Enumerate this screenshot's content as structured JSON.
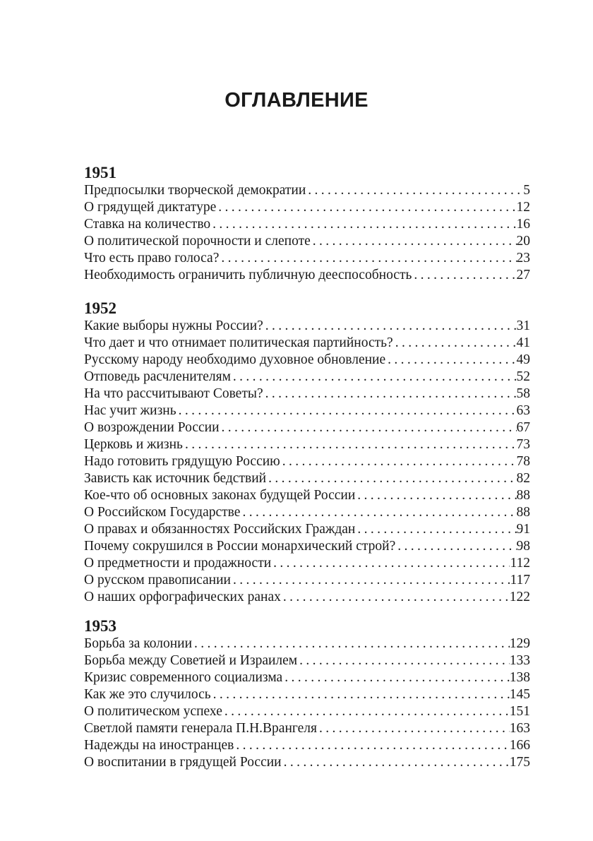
{
  "title": "ОГЛАВЛЕНИЕ",
  "sections": [
    {
      "year": "1951",
      "entries": [
        {
          "title": "Предпосылки творческой демократии",
          "page": "5"
        },
        {
          "title": "О грядущей диктатуре",
          "page": "12"
        },
        {
          "title": "Ставка на количество",
          "page": "16"
        },
        {
          "title": "О политической порочности и слепоте",
          "page": "20"
        },
        {
          "title": "Что есть право голоса?",
          "page": "23"
        },
        {
          "title": "Необходимость ограничить публичную дееспособность",
          "page": "27"
        }
      ]
    },
    {
      "year": "1952",
      "entries": [
        {
          "title": "Какие выборы нужны России?",
          "page": "31"
        },
        {
          "title": "Что дает и что отнимает политическая партийность?",
          "page": "41"
        },
        {
          "title": "Русскому народу необходимо духовное обновление",
          "page": "49"
        },
        {
          "title": "Отповедь расчленителям",
          "page": "52"
        },
        {
          "title": "На что рассчитывают Советы?",
          "page": "58"
        },
        {
          "title": "Нас учит жизнь",
          "page": "63"
        },
        {
          "title": "О возрождении России",
          "page": "67"
        },
        {
          "title": "Церковь и жизнь",
          "page": "73"
        },
        {
          "title": "Надо готовить грядущую Россию",
          "page": "78"
        },
        {
          "title": "Зависть как источник бедствий",
          "page": "82"
        },
        {
          "title": "Кое-что об основных законах будущей России",
          "page": "88"
        },
        {
          "title": "О Российском Государстве",
          "page": "88"
        },
        {
          "title": "О правах и обязанностях Российских Граждан",
          "page": "91"
        },
        {
          "title": "Почему сокрушился в России монархический строй?",
          "page": "98"
        },
        {
          "title": "О предметности и продажности",
          "page": "112"
        },
        {
          "title": "О русском правописании",
          "page": "117"
        },
        {
          "title": "О наших орфографических ранах",
          "page": "122"
        }
      ]
    },
    {
      "year": "1953",
      "entries": [
        {
          "title": "Борьба за колонии",
          "page": "129"
        },
        {
          "title": "Борьба между Советией и Израилем",
          "page": "133"
        },
        {
          "title": "Кризис современного социализма",
          "page": "138"
        },
        {
          "title": "Как же это случилось",
          "page": "145"
        },
        {
          "title": "О политическом успехе",
          "page": "151"
        },
        {
          "title": "Светлой памяти генерала П.Н.Врангеля",
          "page": "163"
        },
        {
          "title": "Надежды на иностранцев",
          "page": "166"
        },
        {
          "title": "О воспитании в грядущей России",
          "page": "175"
        }
      ]
    }
  ]
}
